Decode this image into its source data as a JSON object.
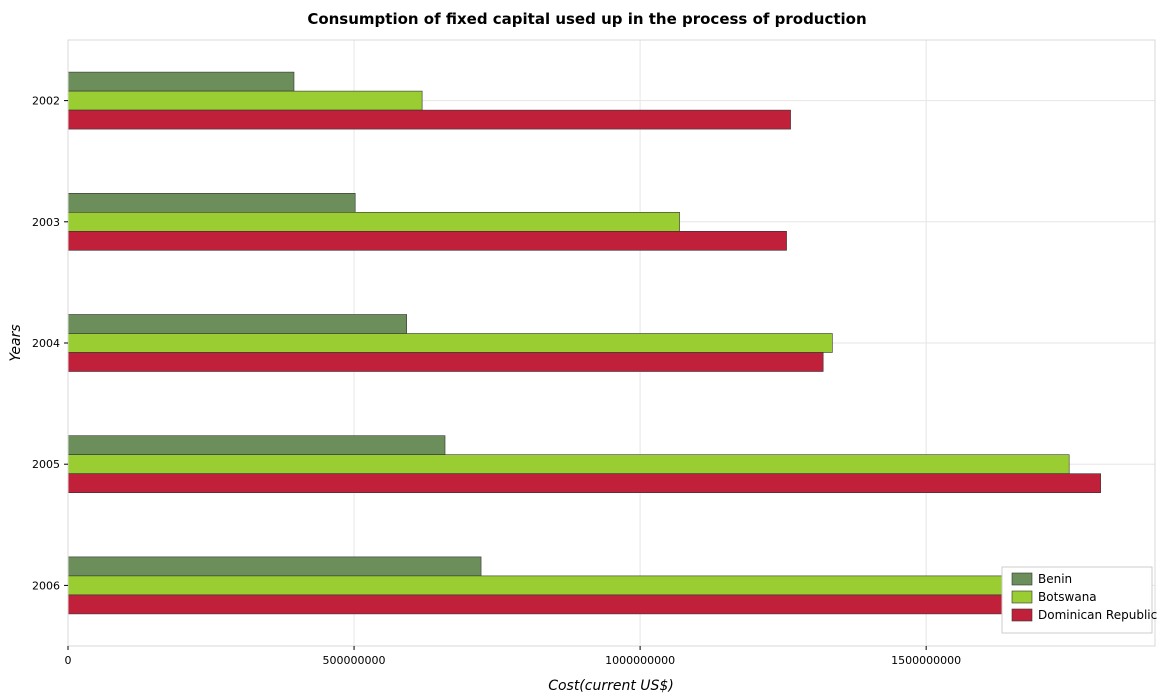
{
  "chart_data": {
    "type": "bar",
    "orientation": "horizontal",
    "title": "Consumption of fixed capital used up in the process of production",
    "xlabel": "Cost(current US$)",
    "ylabel": "Years",
    "categories": [
      "2002",
      "2003",
      "2004",
      "2005",
      "2006"
    ],
    "xlim": [
      0,
      1900000000
    ],
    "xticks": [
      0,
      500000000,
      1000000000,
      1500000000
    ],
    "xtick_labels": [
      "0",
      "500000000",
      "1000000000",
      "1500000000"
    ],
    "grid": true,
    "legend_position": "bottom-right",
    "series": [
      {
        "name": "Benin",
        "color": "#6b8e5a",
        "values": [
          395000000,
          502000000,
          592000000,
          659000000,
          722000000
        ]
      },
      {
        "name": "Botswana",
        "color": "#9acd32",
        "values": [
          619000000,
          1069000000,
          1336000000,
          1750000000,
          1713000000
        ]
      },
      {
        "name": "Dominican Republic",
        "color": "#c0203a",
        "values": [
          1263000000,
          1256000000,
          1320000000,
          1805000000,
          1821000000
        ]
      }
    ]
  }
}
